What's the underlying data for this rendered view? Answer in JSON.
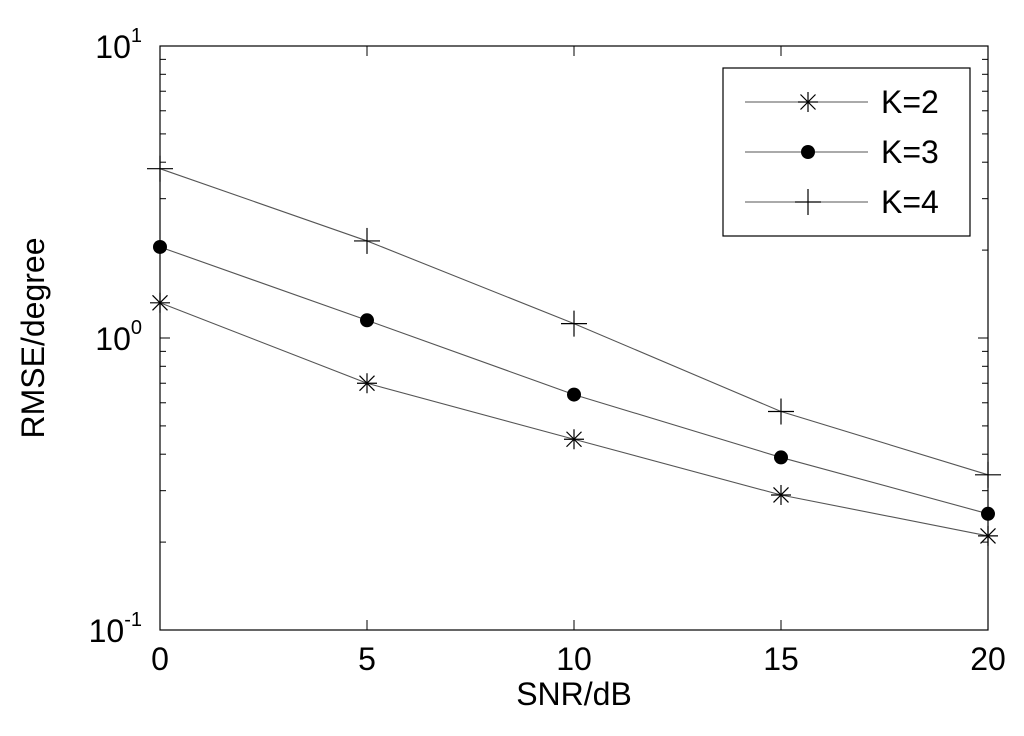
{
  "chart_data": {
    "type": "line",
    "xlabel": "SNR/dB",
    "ylabel": "RMSE/degree",
    "x": [
      0,
      5,
      10,
      15,
      20
    ],
    "xlim": [
      0,
      20
    ],
    "xticks": [
      "0",
      "5",
      "10",
      "15",
      "20"
    ],
    "ylim": [
      0.1,
      10
    ],
    "yscale": "log",
    "yticks": [
      {
        "base": "10",
        "exp": "-1"
      },
      {
        "base": "10",
        "exp": "0"
      },
      {
        "base": "10",
        "exp": "1"
      }
    ],
    "grid": false,
    "legend_position": "top-right",
    "series": [
      {
        "name": "K=2",
        "marker": "asterisk",
        "values": [
          1.32,
          0.7,
          0.45,
          0.29,
          0.21
        ]
      },
      {
        "name": "K=3",
        "marker": "filled-circle",
        "values": [
          2.05,
          1.15,
          0.64,
          0.39,
          0.25
        ]
      },
      {
        "name": "K=4",
        "marker": "plus",
        "values": [
          3.8,
          2.15,
          1.12,
          0.56,
          0.34
        ]
      }
    ],
    "colors": {
      "line": "#555555",
      "marker": "#000000",
      "axis": "#000000"
    }
  }
}
